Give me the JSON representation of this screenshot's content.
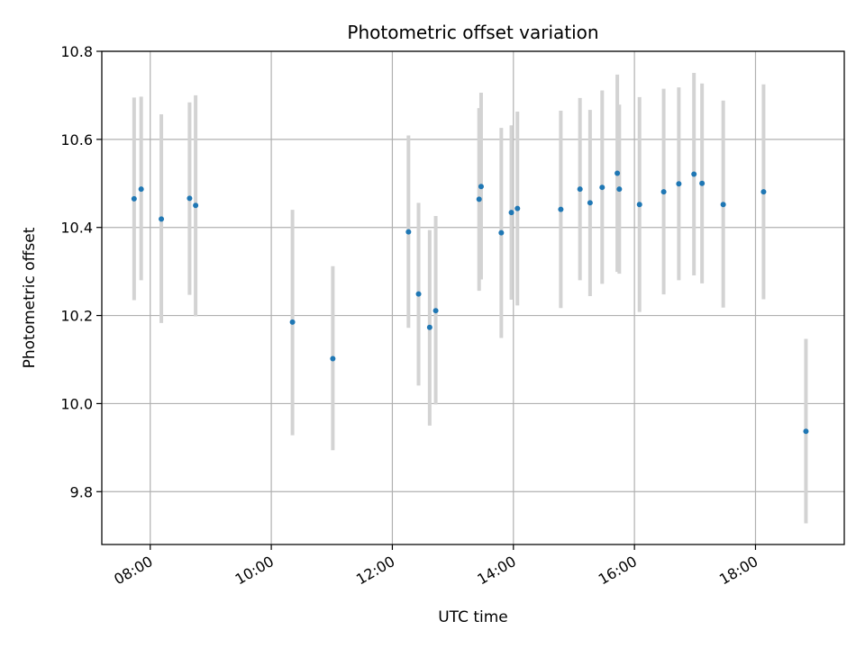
{
  "chart_data": {
    "type": "scatter",
    "title": "Photometric offset variation",
    "xlabel": "UTC time",
    "ylabel": "Photometric offset",
    "x_tick_labels": [
      "08:00",
      "10:00",
      "12:00",
      "14:00",
      "16:00",
      "18:00"
    ],
    "x_ticks_hours": [
      8,
      10,
      12,
      14,
      16,
      18
    ],
    "y_tick_labels": [
      "9.8",
      "10.0",
      "10.2",
      "10.4",
      "10.6",
      "10.8"
    ],
    "y_ticks": [
      9.8,
      10.0,
      10.2,
      10.4,
      10.6,
      10.8
    ],
    "xlim": [
      "07:12",
      "19:28"
    ],
    "ylim": [
      9.68,
      10.8
    ],
    "grid": true,
    "colors": {
      "point": "#1f77b4",
      "errorbar": "#d3d3d3",
      "grid": "#b0b0b0"
    },
    "points": [
      {
        "time": "07:44",
        "y": 10.465,
        "low": 10.235,
        "high": 10.695
      },
      {
        "time": "07:51",
        "y": 10.487,
        "low": 10.28,
        "high": 10.697
      },
      {
        "time": "08:11",
        "y": 10.419,
        "low": 10.183,
        "high": 10.657
      },
      {
        "time": "08:39",
        "y": 10.466,
        "low": 10.247,
        "high": 10.684
      },
      {
        "time": "08:45",
        "y": 10.45,
        "low": 10.198,
        "high": 10.7
      },
      {
        "time": "10:21",
        "y": 10.185,
        "low": 9.928,
        "high": 10.44
      },
      {
        "time": "11:01",
        "y": 10.102,
        "low": 9.894,
        "high": 10.312
      },
      {
        "time": "12:16",
        "y": 10.39,
        "low": 10.172,
        "high": 10.609
      },
      {
        "time": "12:26",
        "y": 10.249,
        "low": 10.041,
        "high": 10.456
      },
      {
        "time": "12:37",
        "y": 10.173,
        "low": 9.95,
        "high": 10.394
      },
      {
        "time": "12:43",
        "y": 10.211,
        "low": 9.998,
        "high": 10.426
      },
      {
        "time": "13:26",
        "y": 10.464,
        "low": 10.256,
        "high": 10.671
      },
      {
        "time": "13:28",
        "y": 10.493,
        "low": 10.282,
        "high": 10.706
      },
      {
        "time": "13:48",
        "y": 10.388,
        "low": 10.149,
        "high": 10.626
      },
      {
        "time": "13:58",
        "y": 10.434,
        "low": 10.236,
        "high": 10.632
      },
      {
        "time": "14:04",
        "y": 10.443,
        "low": 10.223,
        "high": 10.663
      },
      {
        "time": "14:47",
        "y": 10.441,
        "low": 10.217,
        "high": 10.665
      },
      {
        "time": "15:06",
        "y": 10.487,
        "low": 10.28,
        "high": 10.694
      },
      {
        "time": "15:16",
        "y": 10.456,
        "low": 10.244,
        "high": 10.667
      },
      {
        "time": "15:28",
        "y": 10.491,
        "low": 10.272,
        "high": 10.711
      },
      {
        "time": "15:43",
        "y": 10.523,
        "low": 10.299,
        "high": 10.747
      },
      {
        "time": "15:45",
        "y": 10.487,
        "low": 10.295,
        "high": 10.679
      },
      {
        "time": "16:05",
        "y": 10.452,
        "low": 10.208,
        "high": 10.696
      },
      {
        "time": "16:29",
        "y": 10.481,
        "low": 10.248,
        "high": 10.715
      },
      {
        "time": "16:44",
        "y": 10.499,
        "low": 10.28,
        "high": 10.718
      },
      {
        "time": "16:59",
        "y": 10.521,
        "low": 10.291,
        "high": 10.751
      },
      {
        "time": "17:07",
        "y": 10.5,
        "low": 10.273,
        "high": 10.727
      },
      {
        "time": "17:28",
        "y": 10.452,
        "low": 10.218,
        "high": 10.688
      },
      {
        "time": "18:08",
        "y": 10.481,
        "low": 10.237,
        "high": 10.725
      },
      {
        "time": "18:50",
        "y": 9.937,
        "low": 9.728,
        "high": 10.147
      }
    ]
  }
}
